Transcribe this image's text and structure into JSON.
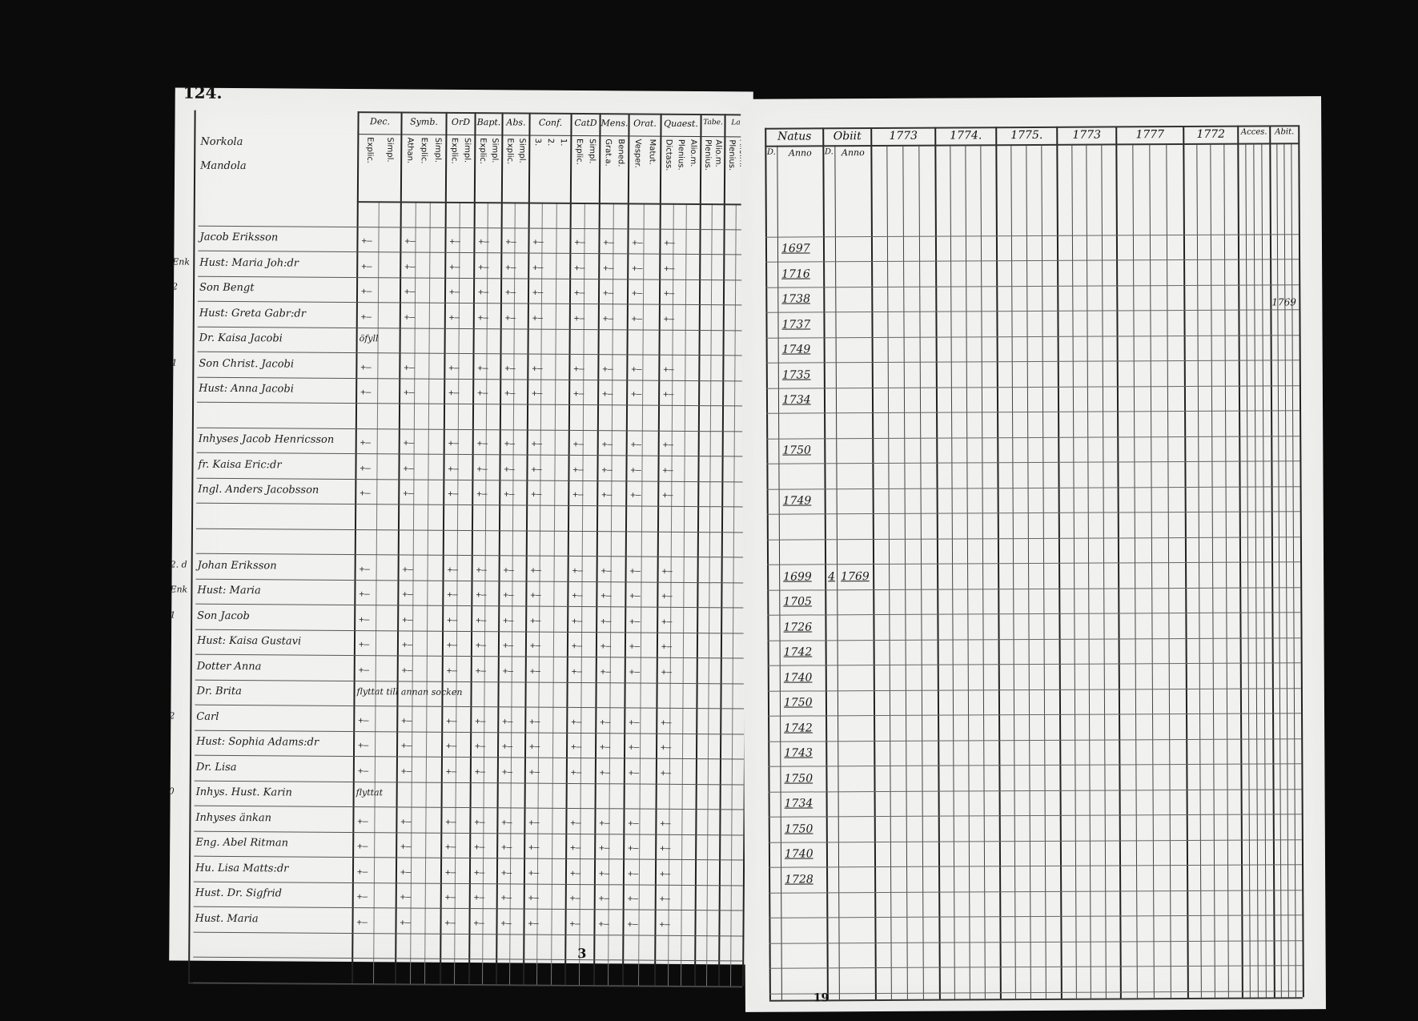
{
  "page_number": "124.",
  "footer_left": "3",
  "footer_right": "19",
  "left_table": {
    "columns": [
      {
        "label": "Dec.",
        "sub": [
          "Explic.",
          "Simpl."
        ]
      },
      {
        "label": "Symb.",
        "sub": [
          "Athan.",
          "Explic.",
          "Simpl."
        ]
      },
      {
        "label": "OrD",
        "sub": [
          "Explic.",
          "Simpl."
        ]
      },
      {
        "label": "Bapt.",
        "sub": [
          "Explic.",
          "Simpl."
        ]
      },
      {
        "label": "Abs.",
        "sub": [
          "Explic.",
          "Simpl."
        ]
      },
      {
        "label": "Conf.",
        "sub": [
          "3.",
          "2.",
          "1."
        ]
      },
      {
        "label": "CatD",
        "sub": [
          "Explic.",
          "Simpl."
        ]
      },
      {
        "label": "Mens.",
        "sub": [
          "Grat.a.",
          "Bened."
        ]
      },
      {
        "label": "Orat.",
        "sub": [
          "Vesper.",
          "Matut."
        ]
      },
      {
        "label": "Quaest.",
        "sub": [
          "Dictass.",
          "Plenius.",
          "Alio.m."
        ]
      },
      {
        "label": "Tabe.",
        "sub": [
          "Plenius.",
          "Alio.m."
        ]
      },
      {
        "label": "La.",
        "sub": [
          "Plenius.",
          "Alio.m."
        ]
      }
    ],
    "persons": [
      {
        "row": 0,
        "name": "Norkola"
      },
      {
        "row": 1,
        "name": "Mandola"
      },
      {
        "row": 2,
        "name": "Jacob Eriksson",
        "born": "1697"
      },
      {
        "row": 3,
        "name": "Hust: Maria Joh:dr",
        "born": "1716",
        "margin": "Enk"
      },
      {
        "row": 4,
        "name": "Son Bengt",
        "born": "1738",
        "margin": "2"
      },
      {
        "row": 5,
        "name": "Hust: Greta Gabr:dr",
        "born": "1737"
      },
      {
        "row": 6,
        "name": "Dr. Kaisa Jacobi",
        "born": "1749",
        "note": "öfyll"
      },
      {
        "row": 7,
        "name": "Son Christ. Jacobi",
        "born": "1735",
        "margin": "1"
      },
      {
        "row": 8,
        "name": "Hust: Anna Jacobi",
        "born": "1734"
      },
      {
        "row": 10,
        "name": "Inhyses Jacob Henricsson",
        "born": "1750"
      },
      {
        "row": 11,
        "name": "fr. Kaisa Eric:dr"
      },
      {
        "row": 12,
        "name": "Ingl. Anders Jacobsson",
        "born": "1749"
      },
      {
        "row": 15,
        "name": "Johan Eriksson",
        "born": "1699",
        "died_day": "4",
        "died_year": "1769",
        "margin": "2. d"
      },
      {
        "row": 16,
        "name": "Hust: Maria",
        "born": "1705",
        "margin": "Enk"
      },
      {
        "row": 17,
        "name": "Son Jacob",
        "born": "1726",
        "margin": "1"
      },
      {
        "row": 18,
        "name": "Hust: Kaisa Gustavi",
        "born": "1742"
      },
      {
        "row": 19,
        "name": "Dotter Anna",
        "born": "1740"
      },
      {
        "row": 20,
        "name": "Dr. Brita",
        "born": "1750",
        "note": "flyttat till annan socken"
      },
      {
        "row": 21,
        "name": "Carl",
        "born": "1742",
        "margin": "2"
      },
      {
        "row": 22,
        "name": "Hust: Sophia Adams:dr",
        "born": "1743"
      },
      {
        "row": 23,
        "name": "Dr. Lisa",
        "born": "1750"
      },
      {
        "row": 24,
        "name": "Inhys. Hust. Karin",
        "born": "1734",
        "margin": "0",
        "note": "flyttat"
      },
      {
        "row": 25,
        "name": "Inhyses änkan",
        "born": "1750"
      },
      {
        "row": 26,
        "name": "Eng. Abel Ritman",
        "born": "1740"
      },
      {
        "row": 27,
        "name": "Hu. Lisa Matts:dr",
        "born": "1728"
      },
      {
        "row": 28,
        "name": "Hust. Dr. Sigfrid"
      },
      {
        "row": 29,
        "name": "Hust. Maria"
      }
    ]
  },
  "right_table": {
    "columns": [
      {
        "label": "Natus",
        "sub": [
          "D.",
          "Anno"
        ]
      },
      {
        "label": "Obiit",
        "sub": [
          "D.",
          "Anno"
        ]
      },
      {
        "label": "1773"
      },
      {
        "label": "1774."
      },
      {
        "label": "1775."
      },
      {
        "label": "1773"
      },
      {
        "label": "1777"
      },
      {
        "label": "1772"
      },
      {
        "label": "Acces."
      },
      {
        "label": "Abit."
      }
    ],
    "abit_note": "1769"
  }
}
